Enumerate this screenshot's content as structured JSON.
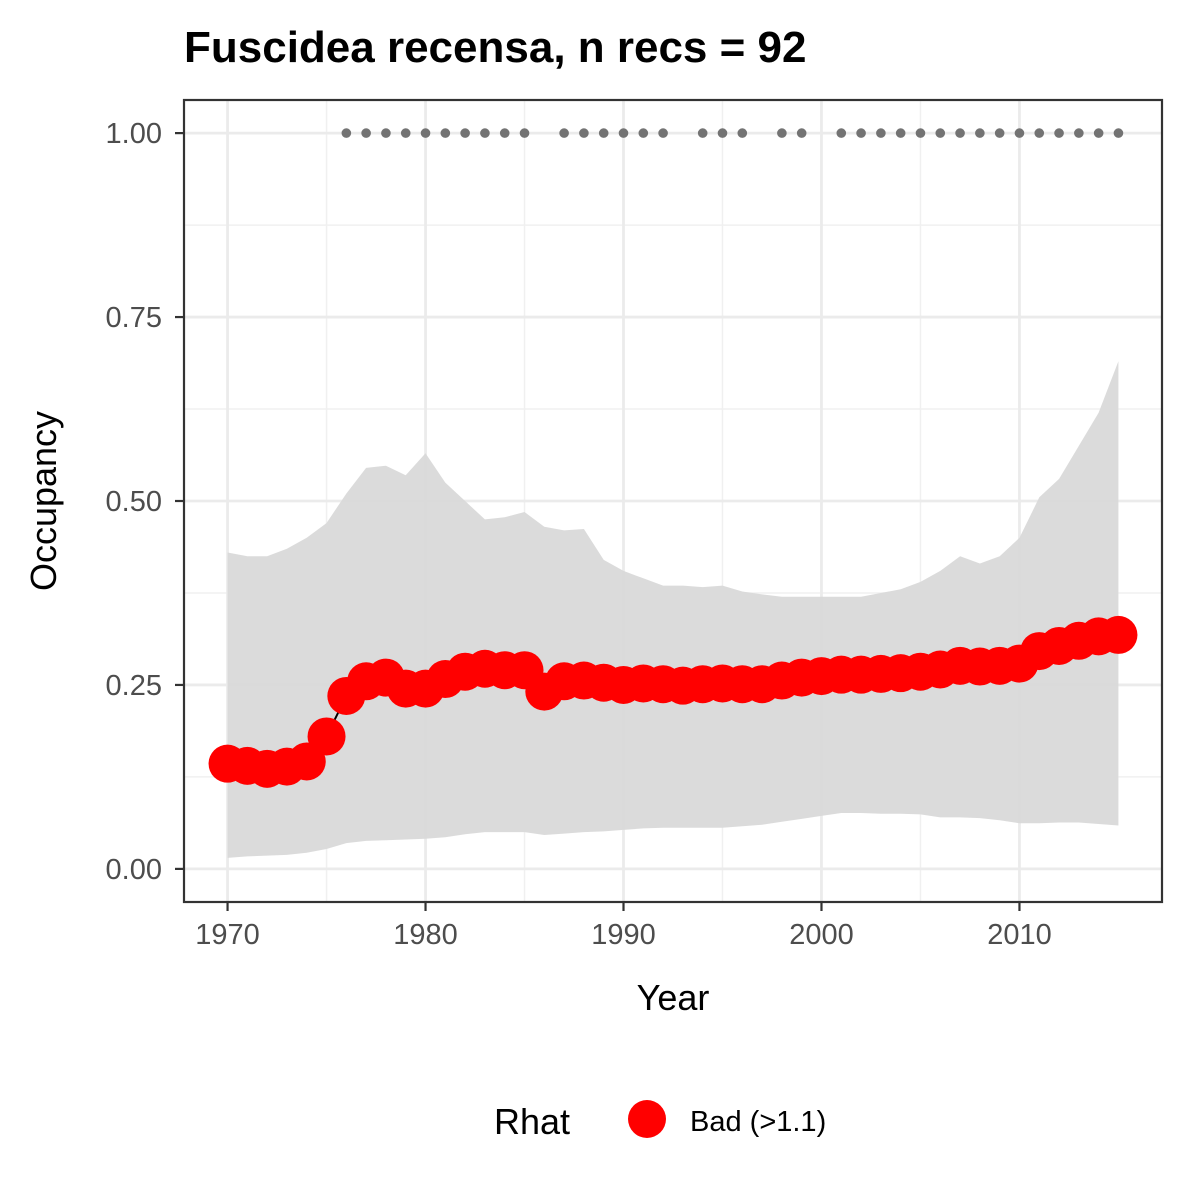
{
  "chart_data": {
    "type": "line",
    "title": "Fuscidea recensa, n recs = 92",
    "xlabel": "Year",
    "ylabel": "Occupancy",
    "xlim": [
      1967.8,
      2017.2
    ],
    "ylim": [
      -0.045,
      1.045
    ],
    "x_ticks": [
      1970,
      1980,
      1990,
      2000,
      2010
    ],
    "x_tick_labels": [
      "1970",
      "1980",
      "1990",
      "2000",
      "2010"
    ],
    "y_ticks": [
      0,
      0.25,
      0.5,
      0.75,
      1.0
    ],
    "y_tick_labels": [
      "0.00",
      "0.25",
      "0.50",
      "0.75",
      "1.00"
    ],
    "grid": true,
    "x": [
      1970,
      1971,
      1972,
      1973,
      1974,
      1975,
      1976,
      1977,
      1978,
      1979,
      1980,
      1981,
      1982,
      1983,
      1984,
      1985,
      1986,
      1987,
      1988,
      1989,
      1990,
      1991,
      1992,
      1993,
      1994,
      1995,
      1996,
      1997,
      1998,
      1999,
      2000,
      2001,
      2002,
      2003,
      2004,
      2005,
      2006,
      2007,
      2008,
      2009,
      2010,
      2011,
      2012,
      2013,
      2014,
      2015
    ],
    "series": [
      {
        "name": "Bad (>1.1)",
        "values": [
          0.143,
          0.14,
          0.136,
          0.139,
          0.146,
          0.18,
          0.235,
          0.255,
          0.26,
          0.245,
          0.245,
          0.258,
          0.268,
          0.272,
          0.27,
          0.27,
          0.241,
          0.255,
          0.256,
          0.253,
          0.25,
          0.252,
          0.251,
          0.249,
          0.251,
          0.252,
          0.251,
          0.251,
          0.256,
          0.26,
          0.262,
          0.264,
          0.264,
          0.265,
          0.266,
          0.268,
          0.271,
          0.276,
          0.275,
          0.276,
          0.279,
          0.296,
          0.303,
          0.31,
          0.316,
          0.318
        ],
        "color": "#ff0000"
      }
    ],
    "ci_lower": [
      0.015,
      0.017,
      0.018,
      0.019,
      0.022,
      0.027,
      0.035,
      0.038,
      0.039,
      0.04,
      0.041,
      0.043,
      0.047,
      0.05,
      0.05,
      0.05,
      0.046,
      0.048,
      0.05,
      0.051,
      0.053,
      0.055,
      0.056,
      0.056,
      0.056,
      0.056,
      0.058,
      0.06,
      0.064,
      0.068,
      0.072,
      0.076,
      0.076,
      0.075,
      0.075,
      0.074,
      0.07,
      0.07,
      0.069,
      0.066,
      0.062,
      0.062,
      0.063,
      0.063,
      0.061,
      0.059
    ],
    "ci_upper": [
      0.43,
      0.425,
      0.425,
      0.435,
      0.45,
      0.47,
      0.51,
      0.545,
      0.548,
      0.535,
      0.565,
      0.525,
      0.5,
      0.475,
      0.478,
      0.485,
      0.465,
      0.46,
      0.462,
      0.42,
      0.405,
      0.395,
      0.385,
      0.385,
      0.383,
      0.385,
      0.377,
      0.373,
      0.37,
      0.37,
      0.37,
      0.37,
      0.37,
      0.375,
      0.38,
      0.39,
      0.405,
      0.425,
      0.415,
      0.425,
      0.45,
      0.505,
      0.53,
      0.575,
      0.62,
      0.69
    ],
    "ci_color": "#d9d9d9",
    "record_years": [
      1976,
      1977,
      1978,
      1979,
      1980,
      1981,
      1982,
      1983,
      1984,
      1985,
      1987,
      1988,
      1989,
      1990,
      1991,
      1992,
      1994,
      1995,
      1996,
      1998,
      1999,
      2001,
      2002,
      2003,
      2004,
      2005,
      2006,
      2007,
      2008,
      2009,
      2010,
      2011,
      2012,
      2013,
      2014,
      2015
    ],
    "record_value": 1.0,
    "record_color": "#737373",
    "legend": {
      "title": "Rhat",
      "label": "Bad (>1.1)",
      "color": "#ff0000",
      "position": "bottom"
    }
  }
}
